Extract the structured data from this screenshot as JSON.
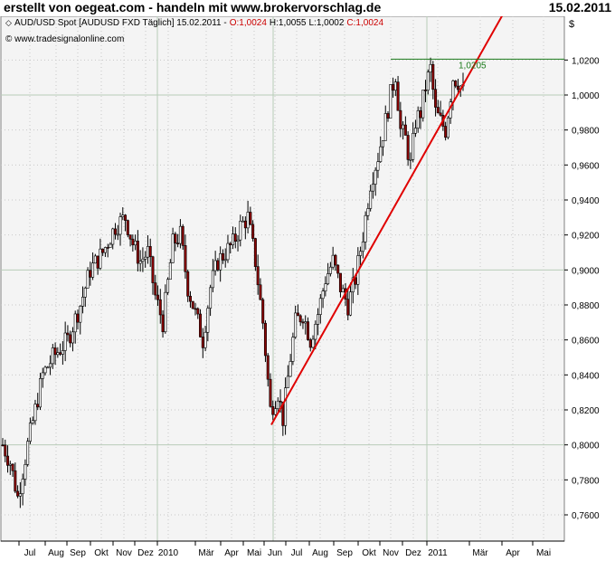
{
  "header": {
    "left_text": "erstellt von oegeat.com - handeln mit www.brokervorschlag.de",
    "right_text": "15.02.2011"
  },
  "legend": {
    "instrument": "AUD/USD Spot [AUDUSD FXD  Täglich] 15.02.2011 -",
    "open": "O:1,0024",
    "high": "H:1,0055",
    "low": "L:1,0002",
    "close": "C:1,0024",
    "source": "© www.tradesignalonline.com"
  },
  "colors": {
    "plot_bg": "#f4f4f4",
    "grid": "#b8ccb8",
    "grid_dots": "#c8c8c8",
    "trendline": "#e00000",
    "resistance": "#1a7a1a",
    "bear_fill": "#8b0000",
    "bull_fill": "#ffffff",
    "candle_outline": "#000000",
    "legend_red": "#cc0000"
  },
  "chart_data": {
    "type": "candlestick",
    "currency_label": "$",
    "ylim": [
      0.745,
      1.045
    ],
    "y_ticks": [
      "1,0200",
      "1,0000",
      "0,9800",
      "0,9600",
      "0,9400",
      "0,9200",
      "0,9000",
      "0,8800",
      "0,8600",
      "0,8400",
      "0,8200",
      "0,8000",
      "0,7800",
      "0,7600"
    ],
    "y_tick_values": [
      1.02,
      1.0,
      0.98,
      0.96,
      0.94,
      0.92,
      0.9,
      0.88,
      0.86,
      0.84,
      0.82,
      0.8,
      0.78,
      0.76
    ],
    "x_ticks": [
      "Jul",
      "Aug",
      "Sep",
      "Okt",
      "Nov",
      "Dez",
      "2010",
      "Mär",
      "Apr",
      "Mai",
      "Jun",
      "Jul",
      "Aug",
      "Sep",
      "Okt",
      "Nov",
      "Dez",
      "2011",
      "Mär",
      "Apr",
      "Mai"
    ],
    "price_anchors": [
      [
        0,
        0.8
      ],
      [
        3,
        0.79
      ],
      [
        6,
        0.77
      ],
      [
        10,
        0.8
      ],
      [
        16,
        0.84
      ],
      [
        20,
        0.85
      ],
      [
        26,
        0.86
      ],
      [
        31,
        0.88
      ],
      [
        35,
        0.9
      ],
      [
        40,
        0.91
      ],
      [
        45,
        0.925
      ],
      [
        49,
        0.93
      ],
      [
        52,
        0.915
      ],
      [
        55,
        0.905
      ],
      [
        58,
        0.91
      ],
      [
        61,
        0.885
      ],
      [
        64,
        0.87
      ],
      [
        68,
        0.915
      ],
      [
        71,
        0.92
      ],
      [
        74,
        0.89
      ],
      [
        77,
        0.875
      ],
      [
        80,
        0.86
      ],
      [
        83,
        0.89
      ],
      [
        86,
        0.905
      ],
      [
        89,
        0.91
      ],
      [
        92,
        0.915
      ],
      [
        95,
        0.925
      ],
      [
        98,
        0.93
      ],
      [
        101,
        0.905
      ],
      [
        104,
        0.87
      ],
      [
        107,
        0.82
      ],
      [
        110,
        0.83
      ],
      [
        112,
        0.815
      ],
      [
        115,
        0.85
      ],
      [
        117,
        0.87
      ],
      [
        120,
        0.875
      ],
      [
        123,
        0.86
      ],
      [
        126,
        0.875
      ],
      [
        129,
        0.895
      ],
      [
        132,
        0.905
      ],
      [
        135,
        0.89
      ],
      [
        138,
        0.88
      ],
      [
        141,
        0.895
      ],
      [
        144,
        0.92
      ],
      [
        147,
        0.95
      ],
      [
        150,
        0.965
      ],
      [
        153,
        0.985
      ],
      [
        155,
        1.0
      ],
      [
        157,
        1.012
      ],
      [
        159,
        0.98
      ],
      [
        161,
        0.975
      ],
      [
        163,
        0.96
      ],
      [
        165,
        0.985
      ],
      [
        167,
        0.99
      ],
      [
        169,
        1.005
      ],
      [
        171,
        1.015
      ],
      [
        173,
        0.99
      ],
      [
        175,
        0.985
      ],
      [
        177,
        0.98
      ],
      [
        180,
        1.01
      ],
      [
        182,
        1.008
      ],
      [
        184,
        1.002
      ]
    ],
    "trendline": {
      "x": [
        "Jun 2010",
        "Feb 2011"
      ],
      "y": [
        0.8115,
        1.02
      ]
    },
    "resistance": {
      "value": 1.0205,
      "label": "1,0205"
    }
  }
}
